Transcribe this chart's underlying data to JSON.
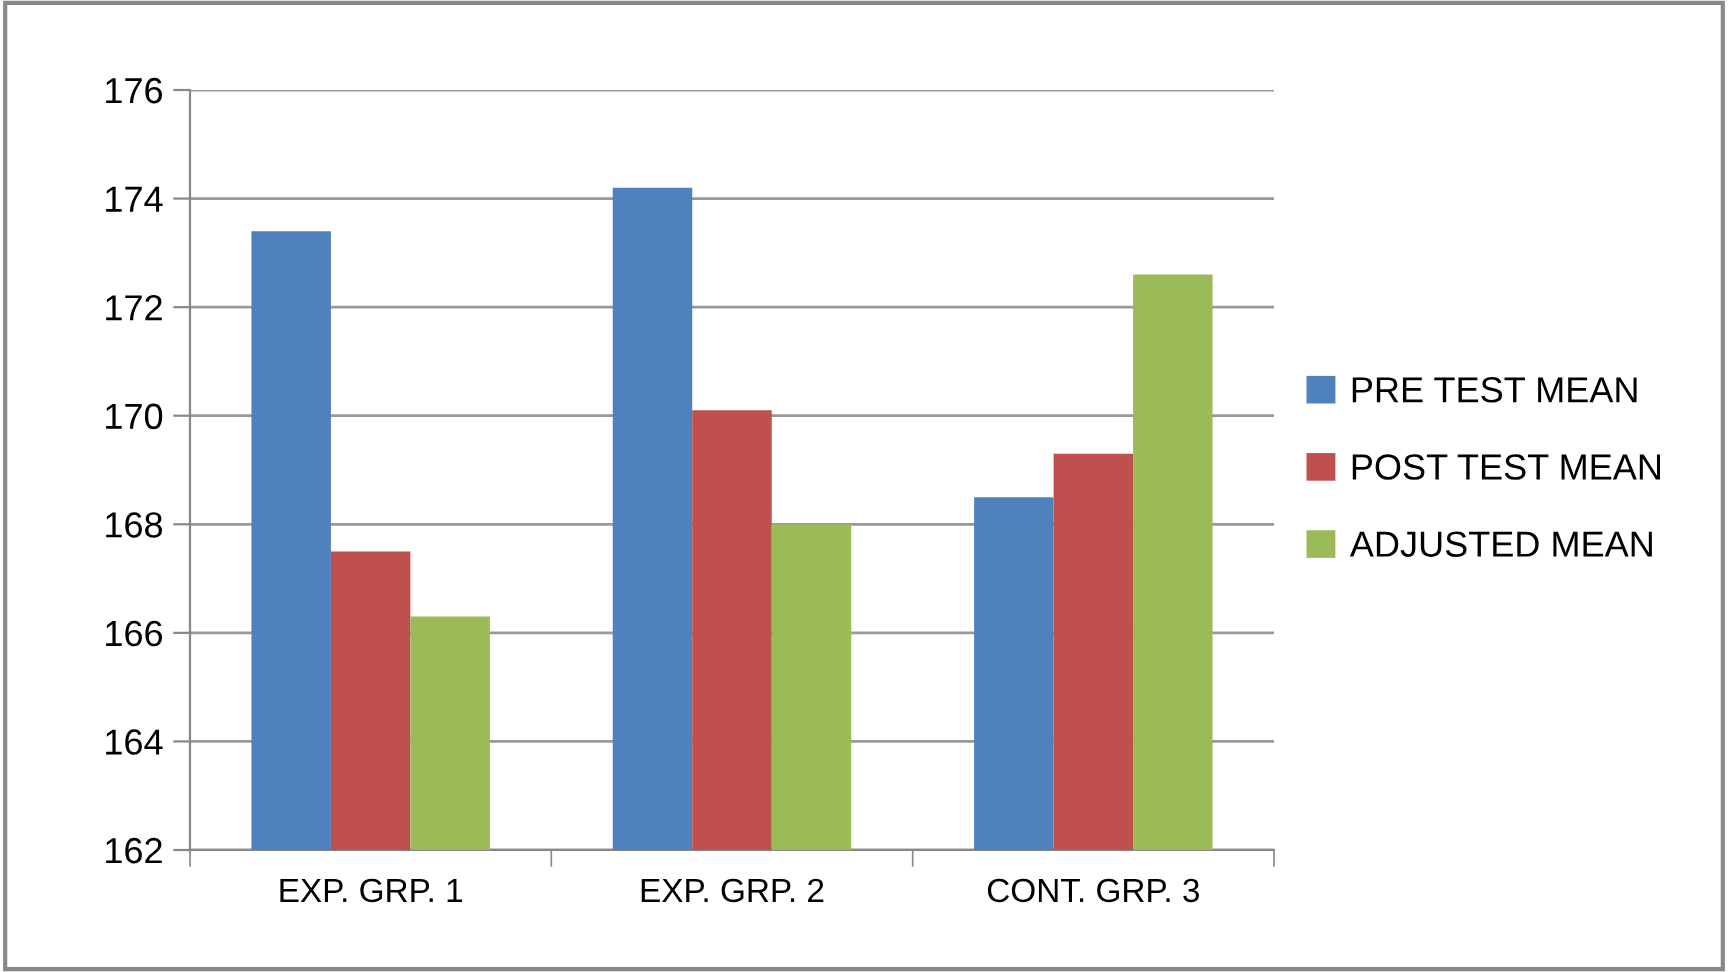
{
  "chart_data": {
    "type": "bar",
    "categories": [
      "EXP. GRP. 1",
      "EXP. GRP. 2",
      "CONT. GRP. 3"
    ],
    "series": [
      {
        "name": "PRE TEST MEAN",
        "color": "#4f81bd",
        "values": [
          173.4,
          174.2,
          168.5
        ]
      },
      {
        "name": "POST TEST MEAN",
        "color": "#c0504d",
        "values": [
          167.5,
          170.1,
          169.3
        ]
      },
      {
        "name": "ADJUSTED MEAN",
        "color": "#9bbb59",
        "values": [
          166.3,
          168.0,
          172.6
        ]
      }
    ],
    "ylim": [
      162,
      176
    ],
    "yticks": [
      162,
      164,
      166,
      168,
      170,
      172,
      174,
      176
    ],
    "grid": "y",
    "legend": "right"
  }
}
